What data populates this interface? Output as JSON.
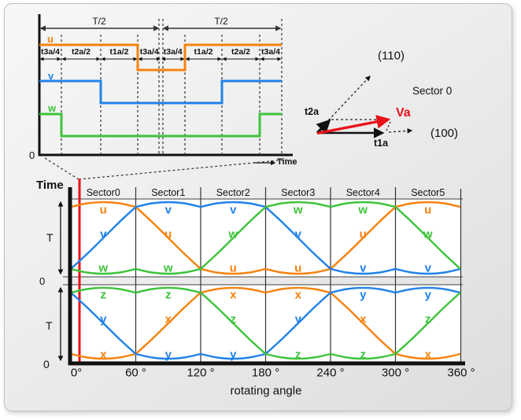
{
  "timing_diagram": {
    "half_period_label": "T/2",
    "segment_labels": [
      "t3a/4",
      "t2a/2",
      "t1a/2",
      "t3a/4",
      "t3a/4",
      "t1a/2",
      "t2a/2",
      "t3a/4"
    ],
    "signals": [
      {
        "name": "u",
        "color": "#F6820F",
        "high_segments": [
          [
            0,
            3
          ],
          [
            5,
            8
          ]
        ]
      },
      {
        "name": "v",
        "color": "#2182E8",
        "high_segments": [
          [
            0,
            2
          ],
          [
            6,
            8
          ]
        ]
      },
      {
        "name": "w",
        "color": "#3EC33B",
        "high_segments": [
          [
            0,
            1
          ],
          [
            7,
            8
          ]
        ]
      }
    ],
    "origin_label": "0",
    "axis_label": "Time"
  },
  "vector_diagram": {
    "v110_label": "(110)",
    "v100_label": "(100)",
    "sector_label": "Sector 0",
    "va_label": "Va",
    "t1a_label": "t1a",
    "t2a_label": "t2a",
    "va_color": "#E8111A"
  },
  "phase_colors": {
    "u": "#F6820F",
    "v": "#2182E8",
    "w": "#3EC33B",
    "x": "#F6820F",
    "y": "#2182E8",
    "z": "#3EC33B"
  },
  "chart_data": {
    "type": "line",
    "xlabel": "rotating angle",
    "ylabel": "Time",
    "x_deg": [
      0,
      15,
      30,
      45,
      60,
      75,
      90,
      105,
      120,
      135,
      150,
      165,
      180,
      195,
      210,
      225,
      240,
      255,
      270,
      285,
      300,
      315,
      330,
      345,
      360
    ],
    "x_tick_labels": [
      "0°",
      "60 °",
      "120 °",
      "180 °",
      "240 °",
      "300 °",
      "360 °"
    ],
    "sector_labels": [
      "Sector0",
      "Sector1",
      "Sector2",
      "Sector3",
      "Sector4",
      "Sector5"
    ],
    "y_zero_label": "0",
    "y_period_label": "T",
    "ylim": [
      "0",
      "T"
    ],
    "cursor_deg": 8,
    "cursor_color": "#E8111A",
    "panels": [
      {
        "id": "switch-on-time",
        "series": [
          {
            "name": "u",
            "color": "#F6820F",
            "values": [
              0.898,
              0.944,
              0.96,
              0.944,
              0.898,
              0.706,
              0.5,
              0.294,
              0.102,
              0.056,
              0.04,
              0.056,
              0.102,
              0.056,
              0.04,
              0.056,
              0.102,
              0.294,
              0.5,
              0.706,
              0.898,
              0.944,
              0.96,
              0.944,
              0.898
            ]
          },
          {
            "name": "v",
            "color": "#2182E8",
            "values": [
              0.102,
              0.294,
              0.5,
              0.706,
              0.898,
              0.944,
              0.96,
              0.944,
              0.898,
              0.944,
              0.96,
              0.944,
              0.898,
              0.706,
              0.5,
              0.294,
              0.102,
              0.056,
              0.04,
              0.056,
              0.102,
              0.056,
              0.04,
              0.056,
              0.102
            ]
          },
          {
            "name": "w",
            "color": "#3EC33B",
            "values": [
              0.102,
              0.056,
              0.04,
              0.056,
              0.102,
              0.056,
              0.04,
              0.056,
              0.102,
              0.294,
              0.5,
              0.706,
              0.898,
              0.944,
              0.96,
              0.944,
              0.898,
              0.944,
              0.96,
              0.944,
              0.898,
              0.706,
              0.5,
              0.294,
              0.102
            ]
          }
        ],
        "sector_letters": [
          [
            "u",
            "v",
            "w"
          ],
          [
            "v",
            "u",
            "w"
          ],
          [
            "v",
            "w",
            "u"
          ],
          [
            "w",
            "v",
            "u"
          ],
          [
            "w",
            "u",
            "v"
          ],
          [
            "u",
            "w",
            "v"
          ]
        ]
      },
      {
        "id": "complementary-time",
        "series": [
          {
            "name": "x",
            "color": "#F6820F",
            "values": [
              0.102,
              0.056,
              0.04,
              0.056,
              0.102,
              0.294,
              0.5,
              0.706,
              0.898,
              0.944,
              0.96,
              0.944,
              0.898,
              0.944,
              0.96,
              0.944,
              0.898,
              0.706,
              0.5,
              0.294,
              0.102,
              0.056,
              0.04,
              0.056,
              0.102
            ]
          },
          {
            "name": "y",
            "color": "#2182E8",
            "values": [
              0.898,
              0.706,
              0.5,
              0.294,
              0.102,
              0.056,
              0.04,
              0.056,
              0.102,
              0.056,
              0.04,
              0.056,
              0.102,
              0.294,
              0.5,
              0.706,
              0.898,
              0.944,
              0.96,
              0.944,
              0.898,
              0.944,
              0.96,
              0.944,
              0.898
            ]
          },
          {
            "name": "z",
            "color": "#3EC33B",
            "values": [
              0.898,
              0.944,
              0.96,
              0.944,
              0.898,
              0.944,
              0.96,
              0.944,
              0.898,
              0.706,
              0.5,
              0.294,
              0.102,
              0.056,
              0.04,
              0.056,
              0.102,
              0.056,
              0.04,
              0.056,
              0.102,
              0.294,
              0.5,
              0.706,
              0.898
            ]
          }
        ],
        "sector_letters": [
          [
            "z",
            "y",
            "x"
          ],
          [
            "z",
            "x",
            "y"
          ],
          [
            "x",
            "z",
            "y"
          ],
          [
            "x",
            "y",
            "z"
          ],
          [
            "y",
            "x",
            "z"
          ],
          [
            "y",
            "z",
            "x"
          ]
        ]
      }
    ]
  }
}
